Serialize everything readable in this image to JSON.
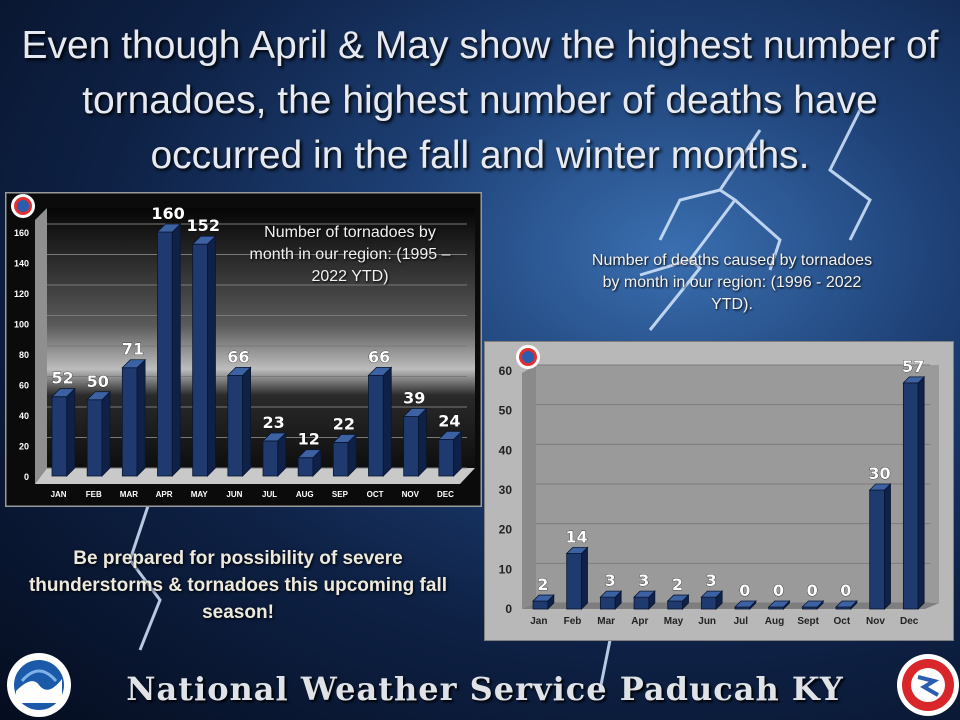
{
  "headline": "Even though April & May show the highest number of tornadoes, the highest number of deaths have occurred in the fall and winter months.",
  "prepared_note": "Be prepared for possibility of severe thunderstorms & tornadoes this upcoming fall season!",
  "footer": "National Weather Service Paducah KY",
  "logos": {
    "left": "noaa-logo",
    "right": "nws-logo"
  },
  "colors": {
    "bar": "#1e3a6e",
    "bar_dark": "#0f2147",
    "bar_light": "#3d62a3"
  },
  "chart_data": [
    {
      "type": "bar",
      "caption": "Number of tornadoes by month in our region: (1995 – 2022 YTD)",
      "categories": [
        "JAN",
        "FEB",
        "MAR",
        "APR",
        "MAY",
        "JUN",
        "JUL",
        "AUG",
        "SEP",
        "OCT",
        "NOV",
        "DEC"
      ],
      "values": [
        52,
        50,
        71,
        160,
        152,
        66,
        23,
        12,
        22,
        66,
        39,
        24
      ],
      "ylim": [
        0,
        160
      ],
      "yticks": [
        "0",
        "20",
        "40",
        "60",
        "80",
        "100",
        "120",
        "140",
        "160"
      ],
      "grid": true
    },
    {
      "type": "bar",
      "caption": "Number of deaths caused by tornadoes by month in our region: (1996 - 2022 YTD).",
      "categories": [
        "Jan",
        "Feb",
        "Mar",
        "Apr",
        "May",
        "Jun",
        "Jul",
        "Aug",
        "Sept",
        "Oct",
        "Nov",
        "Dec"
      ],
      "values": [
        2,
        14,
        3,
        3,
        2,
        3,
        0,
        0,
        0,
        0,
        30,
        57
      ],
      "ylim": [
        0,
        60
      ],
      "yticks": [
        "0",
        "10",
        "20",
        "30",
        "40",
        "50",
        "60"
      ],
      "grid": true
    }
  ]
}
